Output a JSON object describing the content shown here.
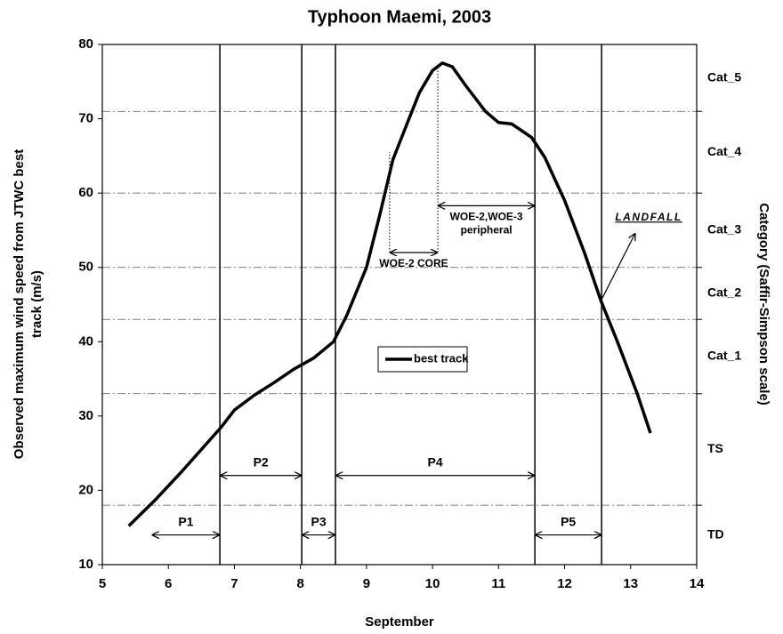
{
  "chart_data": {
    "type": "line",
    "title": "Typhoon Maemi, 2003",
    "xlabel": "September",
    "ylabel": [
      "Observed maximum wind speed from JTWC best",
      "track (m/s)"
    ],
    "y2label": "Category (Saffir-Simpson scale)",
    "xlim": [
      5,
      14
    ],
    "xticks": [
      5,
      6,
      7,
      8,
      9,
      10,
      11,
      12,
      13,
      14
    ],
    "ylim": [
      10,
      80
    ],
    "yticks": [
      10,
      20,
      30,
      40,
      50,
      60,
      70,
      80
    ],
    "y2lim": [
      10,
      80
    ],
    "y2ticks": [
      18,
      33,
      43,
      50,
      60,
      71
    ],
    "y2_labels": [
      "TD",
      "TS",
      "Cat_1",
      "Cat_2",
      "Cat_3",
      "Cat_4",
      "Cat_5"
    ],
    "grid": true,
    "legend": "center",
    "series": [
      {
        "name": "best track",
        "color": "#000000",
        "x": [
          5.4,
          5.8,
          6.2,
          6.5,
          6.8,
          7.0,
          7.3,
          7.6,
          7.9,
          8.2,
          8.5,
          8.7,
          9.0,
          9.2,
          9.4,
          9.6,
          9.8,
          10.0,
          10.15,
          10.3,
          10.5,
          10.8,
          11.0,
          11.2,
          11.5,
          11.7,
          12.0,
          12.3,
          12.55,
          12.8,
          13.1,
          13.3
        ],
        "values": [
          15.2,
          18.7,
          22.5,
          25.5,
          28.5,
          30.8,
          32.8,
          34.5,
          36.3,
          37.8,
          40.0,
          43.5,
          50,
          57,
          64.5,
          69,
          73.5,
          76.5,
          77.5,
          77,
          74.5,
          71,
          69.5,
          69.3,
          67.5,
          64.8,
          59,
          52,
          45.5,
          40,
          33,
          27.7
        ]
      }
    ],
    "boundaries": [
      6.78,
      8.02,
      8.53,
      11.55,
      12.56
    ],
    "periods": [
      {
        "name": "P1",
        "start": 5.75,
        "end": 6.78,
        "y": 14
      },
      {
        "name": "P2",
        "start": 6.78,
        "end": 8.02,
        "y": 22
      },
      {
        "name": "P3",
        "start": 8.02,
        "end": 8.53,
        "y": 14
      },
      {
        "name": "P4",
        "start": 8.53,
        "end": 11.55,
        "y": 22
      },
      {
        "name": "P5",
        "start": 11.55,
        "end": 12.56,
        "y": 14
      }
    ],
    "annotations": [
      {
        "lines": [
          "WOE-2 CORE"
        ],
        "start": 9.35,
        "end": 10.08,
        "y": 52,
        "top": [
          65.5,
          77.5
        ]
      },
      {
        "lines": [
          "WOE-2,WOE-3",
          "peripheral"
        ],
        "start": 10.08,
        "end": 11.55,
        "y": 58.3
      }
    ],
    "landfall": {
      "text": "LANDFALL",
      "x": 12.55,
      "y": 45.5,
      "x2": 13.07,
      "y2": 54.6
    }
  }
}
